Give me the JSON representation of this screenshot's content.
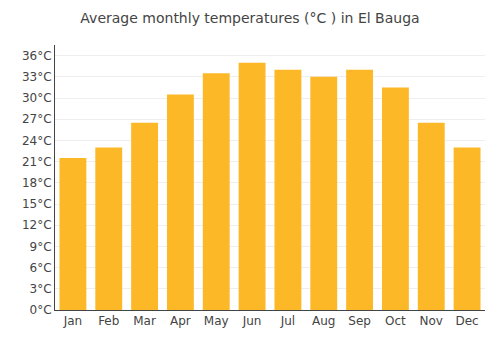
{
  "chart_data": {
    "type": "bar",
    "title": "Average monthly temperatures (°C ) in El Bauga",
    "categories": [
      "Jan",
      "Feb",
      "Mar",
      "Apr",
      "May",
      "Jun",
      "Jul",
      "Aug",
      "Sep",
      "Oct",
      "Nov",
      "Dec"
    ],
    "values": [
      21.5,
      23.0,
      26.5,
      30.5,
      33.5,
      35.0,
      34.0,
      33.0,
      34.0,
      31.5,
      26.5,
      23.0
    ],
    "color": "#FDB827",
    "ylim": [
      0,
      37.5
    ],
    "yticks": [
      {
        "value": 0,
        "label": "0°C"
      },
      {
        "value": 3,
        "label": "3°C"
      },
      {
        "value": 6,
        "label": "6°C"
      },
      {
        "value": 9,
        "label": "9°C"
      },
      {
        "value": 12,
        "label": "12°C"
      },
      {
        "value": 15,
        "label": "15°C"
      },
      {
        "value": 18,
        "label": "18°C"
      },
      {
        "value": 21,
        "label": "21°C"
      },
      {
        "value": 24,
        "label": "24°C"
      },
      {
        "value": 27,
        "label": "27°C"
      },
      {
        "value": 30,
        "label": "30°C"
      },
      {
        "value": 33,
        "label": "33°C"
      },
      {
        "value": 36,
        "label": "36°C"
      }
    ],
    "grid": true
  }
}
